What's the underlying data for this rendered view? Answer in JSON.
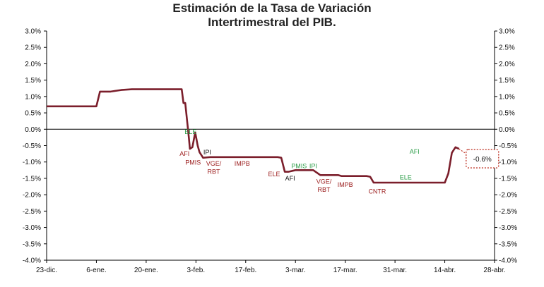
{
  "chart_data": {
    "type": "line",
    "title_line1": "Estimación de la Tasa de Variación",
    "title_line2": "Intertrimestral del PIB.",
    "xlabel": "",
    "ylabel": "",
    "ylim": [
      -4.0,
      3.0
    ],
    "y_ticks": [
      "3.0%",
      "2.5%",
      "2.0%",
      "1.5%",
      "1.0%",
      "0.5%",
      "0.0%",
      "-0.5%",
      "-1.0%",
      "-1.5%",
      "-2.0%",
      "-2.5%",
      "-3.0%",
      "-3.5%",
      "-4.0%"
    ],
    "x_ticks": [
      "23-dic.",
      "6-ene.",
      "20-ene.",
      "3-feb.",
      "17-feb.",
      "3-mar.",
      "17-mar.",
      "31-mar.",
      "14-abr.",
      "28-abr."
    ],
    "xlim_days": [
      0,
      126
    ],
    "line_color": "#7b1e2b",
    "series": [
      {
        "x": [
          0,
          12,
          13,
          14,
          15,
          18,
          21,
          24,
          27,
          30,
          33,
          36,
          38,
          38.5,
          39,
          40,
          40.3,
          41,
          41.8,
          42.5,
          43,
          44,
          46,
          48,
          51,
          55,
          60,
          65,
          66,
          67,
          68,
          70,
          71,
          72,
          73,
          75,
          77,
          80,
          82,
          83,
          85,
          88,
          90,
          91,
          92,
          94,
          97,
          98,
          100,
          103,
          105,
          108,
          110,
          112,
          113,
          114,
          115,
          116
        ],
        "y": [
          0.7,
          0.7,
          0.7,
          0.7,
          1.15,
          1.15,
          1.2,
          1.22,
          1.22,
          1.22,
          1.22,
          1.22,
          1.22,
          0.8,
          0.8,
          -0.25,
          -0.6,
          -0.55,
          -0.1,
          -0.5,
          -0.7,
          -0.87,
          -0.85,
          -0.85,
          -0.85,
          -0.85,
          -0.85,
          -0.85,
          -0.87,
          -1.3,
          -1.3,
          -1.25,
          -1.25,
          -1.25,
          -1.25,
          -1.25,
          -1.4,
          -1.4,
          -1.4,
          -1.43,
          -1.43,
          -1.43,
          -1.43,
          -1.45,
          -1.63,
          -1.63,
          -1.63,
          -1.63,
          -1.63,
          -1.63,
          -1.63,
          -1.63,
          -1.63,
          -1.63,
          -1.35,
          -0.72,
          -0.55,
          -0.6
        ]
      }
    ],
    "annotations": [
      {
        "text": "ELE",
        "color": "#2e9e4a",
        "x": 40.5,
        "y": -0.08
      },
      {
        "text": "AFI",
        "color": "#9b1c1c",
        "x": 38.8,
        "y": -0.75
      },
      {
        "text": "PMIS",
        "color": "#9b1c1c",
        "x": 41.2,
        "y": -1.02
      },
      {
        "text": "IPI",
        "color": "#111111",
        "x": 45.2,
        "y": -0.7
      },
      {
        "text": "VGE/",
        "color": "#9b1c1c",
        "x": 47.0,
        "y": -1.05
      },
      {
        "text": "RBT",
        "color": "#9b1c1c",
        "x": 47.0,
        "y": -1.3
      },
      {
        "text": "IMPB",
        "color": "#9b1c1c",
        "x": 55.0,
        "y": -1.05
      },
      {
        "text": "ELE",
        "color": "#9b1c1c",
        "x": 64.0,
        "y": -1.37
      },
      {
        "text": "AFI",
        "color": "#111111",
        "x": 68.5,
        "y": -1.5
      },
      {
        "text": "PMIS",
        "color": "#2e9e4a",
        "x": 71.0,
        "y": -1.12
      },
      {
        "text": "IPI",
        "color": "#2e9e4a",
        "x": 75.0,
        "y": -1.12
      },
      {
        "text": "VGE/",
        "color": "#9b1c1c",
        "x": 78.0,
        "y": -1.6
      },
      {
        "text": "RBT",
        "color": "#9b1c1c",
        "x": 78.0,
        "y": -1.85
      },
      {
        "text": "IMPB",
        "color": "#9b1c1c",
        "x": 84.0,
        "y": -1.7
      },
      {
        "text": "CNTR",
        "color": "#9b1c1c",
        "x": 93.0,
        "y": -1.9
      },
      {
        "text": "ELE",
        "color": "#2e9e4a",
        "x": 101.0,
        "y": -1.47
      },
      {
        "text": "AFI",
        "color": "#2e9e4a",
        "x": 103.5,
        "y": -0.68
      }
    ],
    "callout": {
      "text": "-0.6%",
      "x": 118,
      "y": -0.9
    }
  }
}
